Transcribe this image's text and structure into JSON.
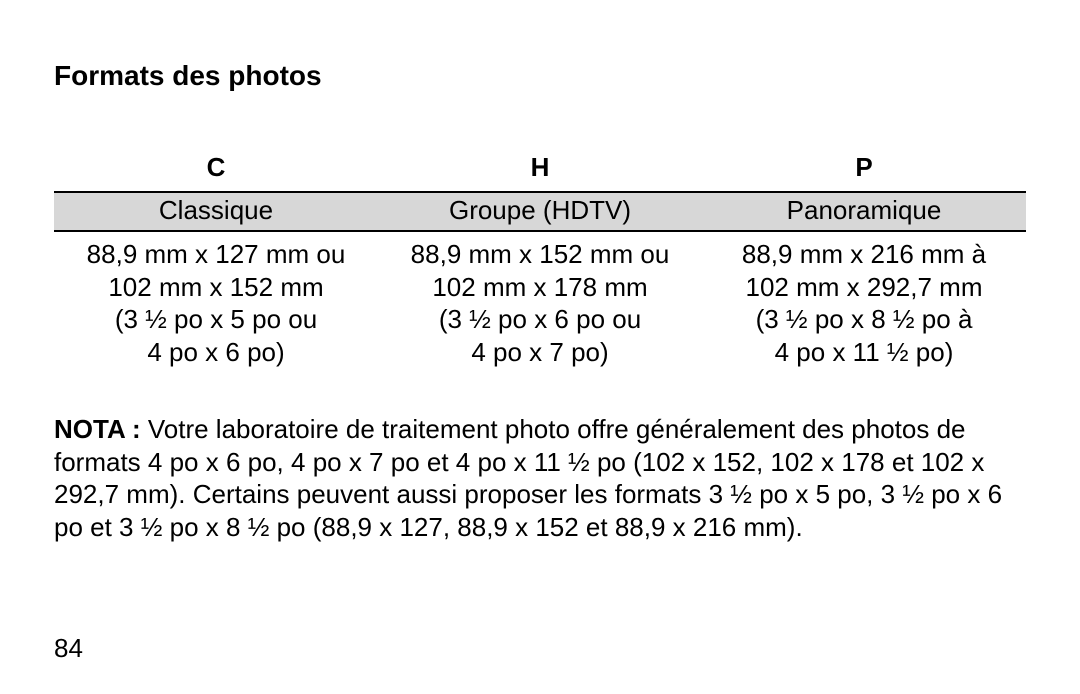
{
  "title": "Formats des photos",
  "table": {
    "columns": [
      {
        "code": "C",
        "label": "Classique",
        "lines": [
          "88,9 mm x 127 mm ou",
          "102 mm x 152 mm",
          "(3 ½ po x 5 po ou",
          "4 po x 6 po)"
        ]
      },
      {
        "code": "H",
        "label": "Groupe (HDTV)",
        "lines": [
          "88,9 mm x 152 mm ou",
          "102 mm x 178 mm",
          "(3 ½ po x 6 po ou",
          "4 po x 7 po)"
        ]
      },
      {
        "code": "P",
        "label": "Panoramique",
        "lines": [
          "88,9 mm x 216 mm à",
          "102 mm x 292,7 mm",
          "(3 ½ po x 8 ½ po à",
          "4 po x 11 ½ po)"
        ]
      }
    ],
    "header_border_color": "#000000",
    "label_bg_color": "#d7d7d7",
    "font_size_pt": 20
  },
  "note": {
    "label": "NOTA : ",
    "text": "Votre laboratoire de traitement photo offre généralement des photos de formats 4 po x 6 po, 4 po x 7 po et 4 po x 11 ½  po (102 x 152, 102 x 178 et 102 x 292,7 mm). Certains peuvent aussi proposer les formats 3 ½ po x 5 po, 3 ½ po x 6 po et 3 ½ po x 8 ½ po (88,9 x 127, 88,9 x 152 et 88,9 x 216 mm)."
  },
  "page_number": "84",
  "colors": {
    "background": "#ffffff",
    "text": "#000000"
  }
}
